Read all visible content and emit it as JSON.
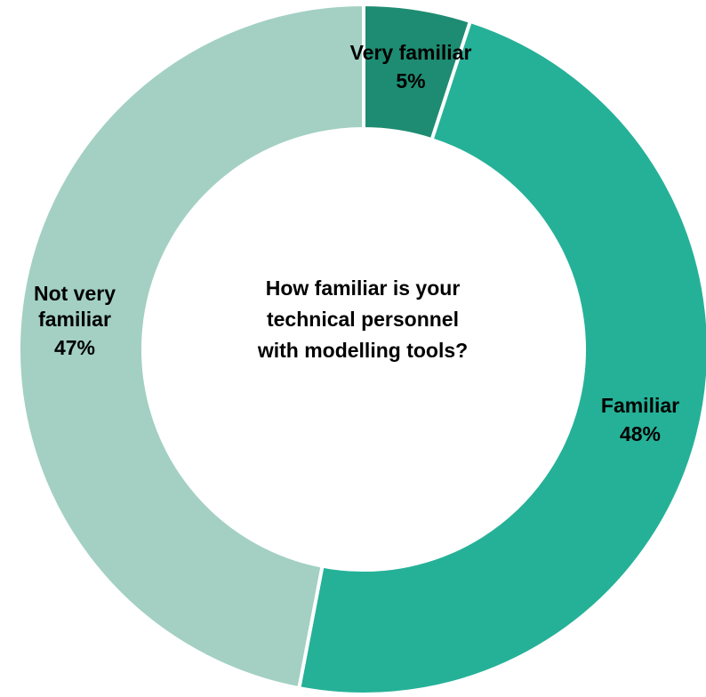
{
  "chart_data": {
    "type": "pie",
    "title": "How familiar is your technical personnel with modelling tools?",
    "title_lines": [
      "How familiar is your",
      "technical personnel",
      "with modelling tools?"
    ],
    "categories": [
      "Very familiar",
      "Familiar",
      "Not very familiar"
    ],
    "values": [
      5,
      48,
      47
    ],
    "value_labels": [
      "5%",
      "48%",
      "47%"
    ],
    "label_lines": [
      [
        "Very familiar"
      ],
      [
        "Familiar"
      ],
      [
        "Not very",
        "familiar"
      ]
    ],
    "colors": [
      "#1e8c72",
      "#25b197",
      "#a3d0c3"
    ],
    "legend": "none",
    "style": "donut"
  }
}
